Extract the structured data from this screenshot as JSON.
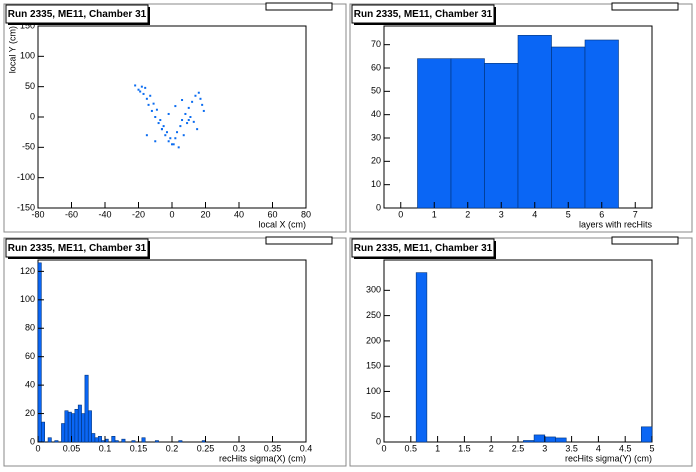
{
  "chart_data": [
    {
      "type": "scatter",
      "title": "Run 2335, ME11, Chamber 31",
      "x_label": "local X (cm)",
      "y_label": "local Y (cm)",
      "color": "#0b6cf0",
      "xlim": [
        -80,
        80
      ],
      "ylim": [
        -150,
        150
      ],
      "xticks": [
        -80,
        -60,
        -40,
        -20,
        0,
        20,
        40,
        60,
        80
      ],
      "yticks": [
        -150,
        -100,
        -50,
        0,
        50,
        100,
        150
      ],
      "x": [
        -22,
        -20,
        -18,
        -17,
        -15,
        -14,
        -12,
        -10,
        -8,
        -6,
        -4,
        -2,
        0,
        2,
        3,
        5,
        6,
        8,
        10,
        12,
        14,
        16,
        17,
        18,
        19,
        -19,
        -16,
        -13,
        -11,
        -9,
        -7,
        -5,
        -3,
        -1,
        1,
        4,
        7,
        9,
        11,
        13,
        15,
        -15,
        -10,
        -6,
        -2,
        2,
        6,
        10
      ],
      "values": [
        52,
        45,
        50,
        38,
        30,
        20,
        10,
        0,
        -10,
        -20,
        -30,
        -40,
        -45,
        -35,
        -25,
        -15,
        -5,
        5,
        15,
        25,
        35,
        40,
        30,
        20,
        10,
        42,
        48,
        35,
        22,
        12,
        -5,
        -15,
        -25,
        -35,
        -45,
        -50,
        -30,
        -10,
        0,
        -8,
        -20,
        -30,
        -40,
        -20,
        5,
        18,
        28,
        -5
      ]
    },
    {
      "type": "histogram",
      "title": "Run 2335, ME11, Chamber 31",
      "x_label": "layers with recHits",
      "color": "#0a66f5",
      "xlim": [
        -0.5,
        7.5
      ],
      "ylim": [
        0,
        78
      ],
      "xticks": [
        0,
        1,
        2,
        3,
        4,
        5,
        6,
        7
      ],
      "yticks": [
        0,
        10,
        20,
        30,
        40,
        50,
        60,
        70
      ],
      "bins": [
        0.5,
        1.5,
        2.5,
        3.5,
        4.5,
        5.5,
        6.5
      ],
      "values": [
        64,
        64,
        62,
        74,
        69,
        72
      ]
    },
    {
      "type": "histogram",
      "title": "Run 2335, ME11, Chamber 31",
      "x_label": "recHits sigma(X) (cm)",
      "color": "#0a66f5",
      "xlim": [
        0,
        0.4
      ],
      "ylim": [
        0,
        128
      ],
      "xticks": [
        0,
        0.05,
        0.1,
        0.15,
        0.2,
        0.25,
        0.3,
        0.35,
        0.4
      ],
      "yticks": [
        0,
        20,
        40,
        60,
        80,
        100,
        120
      ],
      "bins": [
        0,
        0.005,
        0.01,
        0.015,
        0.02,
        0.025,
        0.03,
        0.035,
        0.04,
        0.045,
        0.05,
        0.055,
        0.06,
        0.065,
        0.07,
        0.075,
        0.08,
        0.085,
        0.09,
        0.095,
        0.1,
        0.105,
        0.11,
        0.115,
        0.12,
        0.125,
        0.13,
        0.135,
        0.14,
        0.145,
        0.15,
        0.155,
        0.16,
        0.165,
        0.17,
        0.175,
        0.18,
        0.185,
        0.19,
        0.195,
        0.2,
        0.205,
        0.21,
        0.215,
        0.22,
        0.225,
        0.23,
        0.235,
        0.24,
        0.245,
        0.25
      ],
      "values": [
        126,
        14,
        0,
        3,
        0,
        1,
        0,
        13,
        22,
        21,
        20,
        23,
        26,
        20,
        47,
        22,
        6,
        3,
        4,
        1,
        2,
        0,
        4,
        1,
        0,
        2,
        0,
        0,
        1,
        0,
        0,
        3,
        0,
        0,
        0,
        1,
        0,
        0,
        0,
        0,
        0,
        0,
        1,
        0,
        0,
        0,
        0,
        0,
        0,
        1
      ]
    },
    {
      "type": "histogram",
      "title": "Run 2335, ME11, Chamber 31",
      "x_label": "recHits sigma(Y) (cm)",
      "color": "#0a66f5",
      "xlim": [
        0,
        5
      ],
      "ylim": [
        0,
        360
      ],
      "xticks": [
        0,
        0.5,
        1,
        1.5,
        2,
        2.5,
        3,
        3.5,
        4,
        4.5,
        5
      ],
      "yticks": [
        0,
        50,
        100,
        150,
        200,
        250,
        300
      ],
      "bins": [
        0,
        0.2,
        0.4,
        0.6,
        0.8,
        1,
        1.2,
        1.4,
        1.6,
        1.8,
        2,
        2.2,
        2.4,
        2.6,
        2.8,
        3,
        3.2,
        3.4,
        3.6,
        3.8,
        4,
        4.2,
        4.4,
        4.6,
        4.8,
        5
      ],
      "values": [
        0,
        0,
        0,
        335,
        0,
        0,
        0,
        0,
        0,
        0,
        0,
        0,
        0,
        3,
        14,
        10,
        8,
        0,
        0,
        0,
        0,
        0,
        0,
        0,
        30
      ]
    }
  ]
}
